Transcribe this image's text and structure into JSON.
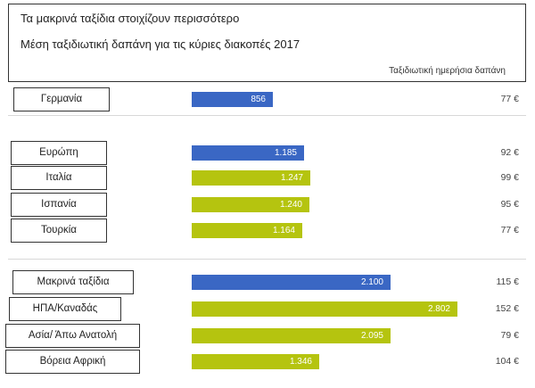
{
  "header": {
    "title": "Τα μακρινά ταξίδια στοιχίζουν περισσότερο",
    "subtitle": "Μέση ταξιδιωτική δαπάνη για τις κύριες διακοπές 2017",
    "column_label": "Ταξιδιωτική ημερήσια δαπάνη"
  },
  "colors": {
    "total": "#3a67c4",
    "destination": "#b5c40f"
  },
  "chart_data": {
    "type": "bar",
    "orientation": "horizontal",
    "title": "Τα μακρινά ταξίδια στοιχίζουν περισσότερο",
    "subtitle": "Μέση ταξιδιωτική δαπάνη για τις κύριες διακοπές 2017",
    "value_unit": "€",
    "secondary_column": "Ταξιδιωτική ημερήσια δαπάνη",
    "rows": [
      {
        "label": "Γερμανία",
        "value": 856,
        "value_label": "856",
        "daily": "77 €",
        "kind": "total"
      },
      {
        "label": "Ευρώπη",
        "value": 1185,
        "value_label": "1.185",
        "daily": "92 €",
        "kind": "total"
      },
      {
        "label": "Ιταλία",
        "value": 1247,
        "value_label": "1.247",
        "daily": "99 €",
        "kind": "destination"
      },
      {
        "label": "Ισπανία",
        "value": 1240,
        "value_label": "1.240",
        "daily": "95 €",
        "kind": "destination"
      },
      {
        "label": "Τουρκία",
        "value": 1164,
        "value_label": "1.164",
        "daily": "77 €",
        "kind": "destination"
      },
      {
        "label": "Μακρινά ταξίδια",
        "value": 2100,
        "value_label": "2.100",
        "daily": "115 €",
        "kind": "total"
      },
      {
        "label": "ΗΠΑ/Καναδάς",
        "value": 2802,
        "value_label": "2.802",
        "daily": "152 €",
        "kind": "destination"
      },
      {
        "label": "Ασία/ Άπω Ανατολή",
        "value": 2095,
        "value_label": "2.095",
        "daily": "79 €",
        "kind": "destination"
      },
      {
        "label": "Βόρεια Αφρική",
        "value": 1346,
        "value_label": "1.346",
        "daily": "104 €",
        "kind": "destination"
      }
    ]
  }
}
